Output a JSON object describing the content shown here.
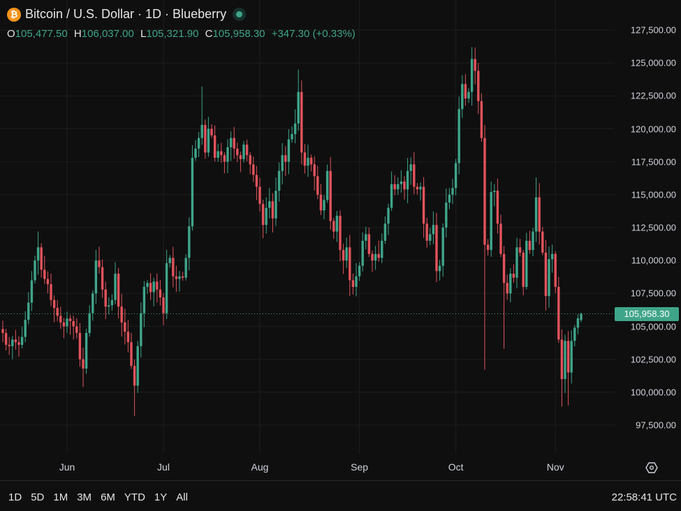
{
  "header": {
    "title": "Bitcoin / U.S. Dollar · 1D · Blueberry",
    "coin_symbol": "₿",
    "ohlc": {
      "o_label": "O",
      "o": "105,477.50",
      "h_label": "H",
      "h": "106,037.00",
      "l_label": "L",
      "l": "105,321.90",
      "c_label": "C",
      "c": "105,958.30",
      "change": "+347.30 (+0.33%)"
    }
  },
  "current_price_label": "105,958.30",
  "ranges": [
    "1D",
    "5D",
    "1M",
    "3M",
    "6M",
    "YTD",
    "1Y",
    "All"
  ],
  "clock": "22:58:41 UTC",
  "colors": {
    "up": "#3fa58a",
    "down": "#e2535c",
    "background": "#0f0f0f",
    "grid": "#1d1d1d"
  },
  "chart_data": {
    "type": "candlestick",
    "title": "Bitcoin / U.S. Dollar · 1D · Blueberry",
    "interval": "1D",
    "ylim": [
      95000,
      130000
    ],
    "y_ticks": [
      97500,
      100000,
      102500,
      105000,
      107500,
      110000,
      112500,
      115000,
      117500,
      120000,
      122500,
      125000,
      127500
    ],
    "y_tick_labels": [
      "97,500.00",
      "100,000.00",
      "102,500.00",
      "105,000.00",
      "107,500.00",
      "110,000.00",
      "112,500.00",
      "115,000.00",
      "117,500.00",
      "120,000.00",
      "122,500.00",
      "125,000.00",
      "127,500.00"
    ],
    "x_ticks": [
      {
        "label": "Jun",
        "index": 20
      },
      {
        "label": "Jul",
        "index": 50
      },
      {
        "label": "Aug",
        "index": 80
      },
      {
        "label": "Sep",
        "index": 111
      },
      {
        "label": "Oct",
        "index": 141
      },
      {
        "label": "Nov",
        "index": 172
      }
    ],
    "first_open": 104800,
    "closes": [
      104500,
      103600,
      103500,
      104000,
      103800,
      103600,
      104200,
      105500,
      106800,
      108500,
      110000,
      111000,
      109300,
      108600,
      108200,
      107000,
      106400,
      105800,
      105300,
      105000,
      105600,
      105400,
      105000,
      104500,
      102500,
      101800,
      104500,
      106000,
      107500,
      110000,
      109500,
      107800,
      106500,
      106600,
      107000,
      109000,
      106500,
      105300,
      104600,
      103800,
      102000,
      100500,
      103500,
      106000,
      108000,
      108300,
      107600,
      108400,
      107800,
      107200,
      106000,
      109800,
      110200,
      108800,
      108600,
      108800,
      108700,
      110200,
      112600,
      117800,
      118500,
      119300,
      120300,
      118200,
      120000,
      119500,
      117800,
      118300,
      118000,
      117500,
      118600,
      119300,
      118500,
      118000,
      117700,
      118800,
      118000,
      117300,
      116500,
      115600,
      114300,
      112700,
      114000,
      114500,
      113200,
      115300,
      116800,
      118000,
      117500,
      119200,
      119600,
      120400,
      122800,
      118200,
      117200,
      117800,
      117300,
      116400,
      115000,
      113800,
      114600,
      116800,
      113000,
      112200,
      113400,
      110800,
      110000,
      111000,
      108500,
      108000,
      108800,
      109600,
      111500,
      112000,
      110500,
      110000,
      110500,
      110200,
      111500,
      112800,
      114000,
      115800,
      115400,
      115800,
      116000,
      115400,
      116800,
      117300,
      115600,
      115400,
      115600,
      112800,
      111500,
      112000,
      112700,
      109200,
      109600,
      112500,
      114400,
      115000,
      115500,
      117400,
      121500,
      123400,
      122300,
      122800,
      125300,
      124400,
      122100,
      119300,
      111200,
      110800,
      115200,
      115300,
      112800,
      110500,
      108300,
      107500,
      109000,
      108700,
      111000,
      110600,
      108000,
      111500,
      110800,
      112200,
      114800,
      112200,
      110600,
      107300,
      110100,
      110500,
      108000,
      104000,
      101000,
      103900,
      101500,
      103900,
      104900,
      105611,
      105958.3
    ],
    "last_candle": {
      "open": 105477.5,
      "high": 106037,
      "low": 105321.9,
      "close": 105958.3
    },
    "extremes": [
      {
        "index": 41,
        "low": 98200
      },
      {
        "index": 25,
        "low": 100400
      },
      {
        "index": 11,
        "high": 112200
      },
      {
        "index": 62,
        "high": 123200
      },
      {
        "index": 92,
        "high": 124500
      },
      {
        "index": 146,
        "high": 126200
      },
      {
        "index": 150,
        "low": 101700
      },
      {
        "index": 156,
        "low": 103300
      },
      {
        "index": 108,
        "low": 107300
      },
      {
        "index": 174,
        "low": 98900
      },
      {
        "index": 176,
        "low": 99000
      },
      {
        "index": 166,
        "high": 116300
      },
      {
        "index": 152,
        "high": 116000
      }
    ]
  }
}
